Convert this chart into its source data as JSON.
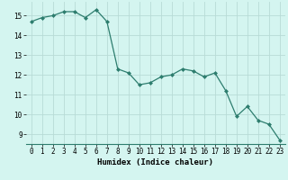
{
  "x": [
    0,
    1,
    2,
    3,
    4,
    5,
    6,
    7,
    8,
    9,
    10,
    11,
    12,
    13,
    14,
    15,
    16,
    17,
    18,
    19,
    20,
    21,
    22,
    23
  ],
  "y": [
    14.7,
    14.9,
    15.0,
    15.2,
    15.2,
    14.9,
    15.3,
    14.7,
    12.3,
    12.1,
    11.5,
    11.6,
    11.9,
    12.0,
    12.3,
    12.2,
    11.9,
    12.1,
    11.2,
    9.9,
    10.4,
    9.7,
    9.5,
    8.7
  ],
  "xlabel": "Humidex (Indice chaleur)",
  "xlim": [
    -0.5,
    23.5
  ],
  "ylim": [
    8.5,
    15.7
  ],
  "yticks": [
    9,
    10,
    11,
    12,
    13,
    14,
    15
  ],
  "xticks": [
    0,
    1,
    2,
    3,
    4,
    5,
    6,
    7,
    8,
    9,
    10,
    11,
    12,
    13,
    14,
    15,
    16,
    17,
    18,
    19,
    20,
    21,
    22,
    23
  ],
  "line_color": "#2d7d6e",
  "bg_color": "#d4f5f0",
  "grid_color": "#b8dbd6",
  "label_fontsize": 6.5,
  "tick_fontsize": 5.5
}
